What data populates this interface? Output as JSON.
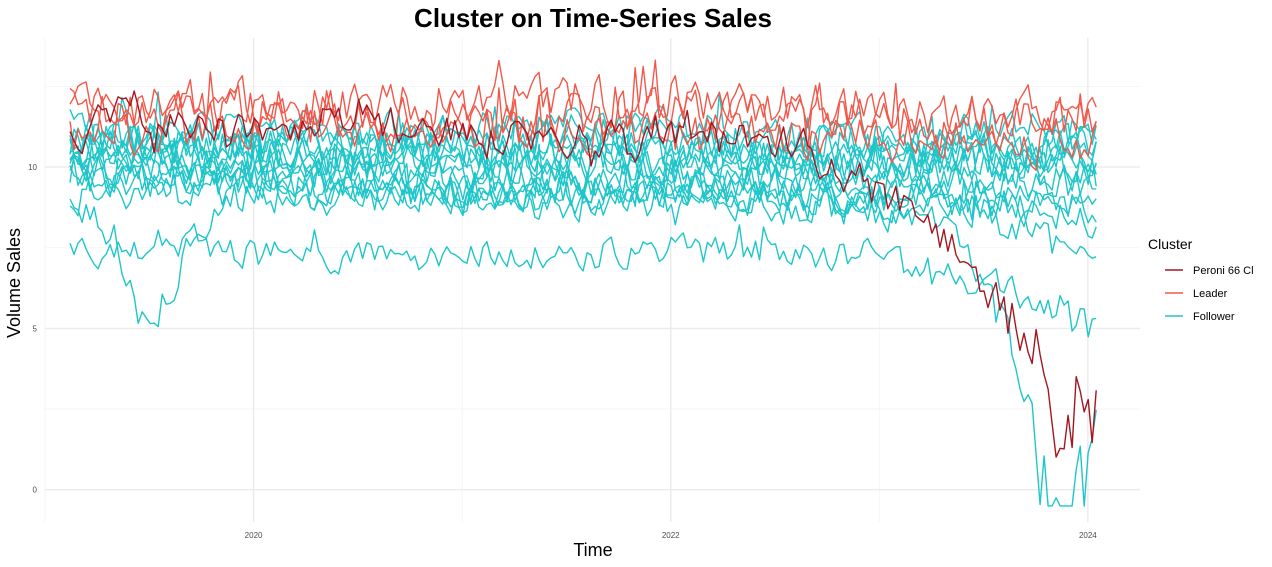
{
  "chart_data": {
    "type": "line",
    "title": "Cluster on Time-Series Sales",
    "xlabel": "Time",
    "ylabel": "Volume Sales",
    "xlim": [
      2019.0,
      2024.25
    ],
    "ylim": [
      -1.0,
      14.0
    ],
    "x_ticks": [
      {
        "value": 2020,
        "label": "2020"
      },
      {
        "value": 2022,
        "label": "2022"
      },
      {
        "value": 2024,
        "label": "2024"
      }
    ],
    "y_ticks": [
      {
        "value": 0,
        "label": "0"
      },
      {
        "value": 5,
        "label": "5"
      },
      {
        "value": 10,
        "label": "10"
      }
    ],
    "grid": true,
    "legend": {
      "title": "Cluster",
      "placement": "right",
      "entries": [
        {
          "label": "Peroni 66 Cl",
          "color": "#a31621"
        },
        {
          "label": "Leader",
          "color": "#f2584a"
        },
        {
          "label": "Follower",
          "color": "#1fc6c9"
        }
      ]
    },
    "series_defaults": {
      "x_start": 2019.12,
      "x_end": 2024.04,
      "points": 257
    },
    "series": [
      {
        "cluster": "Follower",
        "color": "#1fc6c9",
        "profile": [
          [
            2019.12,
            10.2
          ],
          [
            2020.0,
            10.0
          ],
          [
            2021.0,
            9.6
          ],
          [
            2022.0,
            9.7
          ],
          [
            2023.0,
            9.7
          ],
          [
            2024.04,
            9.9
          ]
        ],
        "noise": 0.55
      },
      {
        "cluster": "Follower",
        "color": "#1fc6c9",
        "profile": [
          [
            2019.12,
            9.8
          ],
          [
            2020.0,
            10.3
          ],
          [
            2021.0,
            10.2
          ],
          [
            2022.0,
            10.1
          ],
          [
            2023.0,
            10.0
          ],
          [
            2024.04,
            10.4
          ]
        ],
        "noise": 0.55
      },
      {
        "cluster": "Follower",
        "color": "#1fc6c9",
        "profile": [
          [
            2019.12,
            10.6
          ],
          [
            2020.0,
            10.8
          ],
          [
            2021.0,
            10.6
          ],
          [
            2022.0,
            10.7
          ],
          [
            2023.0,
            10.4
          ],
          [
            2024.04,
            10.8
          ]
        ],
        "noise": 0.55
      },
      {
        "cluster": "Follower",
        "color": "#1fc6c9",
        "profile": [
          [
            2019.12,
            9.4
          ],
          [
            2020.0,
            9.6
          ],
          [
            2021.0,
            9.3
          ],
          [
            2022.0,
            9.2
          ],
          [
            2023.0,
            9.0
          ],
          [
            2024.04,
            9.1
          ]
        ],
        "noise": 0.5
      },
      {
        "cluster": "Follower",
        "color": "#1fc6c9",
        "profile": [
          [
            2019.12,
            11.2
          ],
          [
            2020.0,
            11.0
          ],
          [
            2021.0,
            10.9
          ],
          [
            2022.0,
            11.0
          ],
          [
            2023.0,
            10.8
          ],
          [
            2024.04,
            10.6
          ]
        ],
        "noise": 0.6
      },
      {
        "cluster": "Follower",
        "color": "#1fc6c9",
        "profile": [
          [
            2019.12,
            10.0
          ],
          [
            2020.0,
            9.9
          ],
          [
            2021.0,
            9.8
          ],
          [
            2022.0,
            9.9
          ],
          [
            2023.0,
            9.6
          ],
          [
            2024.04,
            9.5
          ]
        ],
        "noise": 0.55
      },
      {
        "cluster": "Follower",
        "color": "#1fc6c9",
        "profile": [
          [
            2019.12,
            10.8
          ],
          [
            2020.0,
            10.4
          ],
          [
            2021.0,
            10.1
          ],
          [
            2022.0,
            10.3
          ],
          [
            2023.0,
            10.1
          ],
          [
            2024.04,
            10.2
          ]
        ],
        "noise": 0.55
      },
      {
        "cluster": "Follower",
        "color": "#1fc6c9",
        "profile": [
          [
            2019.12,
            9.1
          ],
          [
            2020.0,
            9.3
          ],
          [
            2021.0,
            9.2
          ],
          [
            2022.0,
            9.4
          ],
          [
            2023.0,
            9.2
          ],
          [
            2024.04,
            8.7
          ]
        ],
        "noise": 0.5
      },
      {
        "cluster": "Follower",
        "color": "#1fc6c9",
        "profile": [
          [
            2019.12,
            11.0
          ],
          [
            2020.0,
            10.6
          ],
          [
            2021.0,
            10.5
          ],
          [
            2022.0,
            10.4
          ],
          [
            2023.0,
            10.3
          ],
          [
            2024.04,
            10.0
          ]
        ],
        "noise": 0.55
      },
      {
        "cluster": "Follower",
        "color": "#1fc6c9",
        "profile": [
          [
            2019.12,
            10.4
          ],
          [
            2020.0,
            10.1
          ],
          [
            2021.0,
            10.4
          ],
          [
            2022.0,
            10.5
          ],
          [
            2023.0,
            10.2
          ],
          [
            2024.04,
            10.6
          ]
        ],
        "noise": 0.6
      },
      {
        "cluster": "Follower",
        "color": "#1fc6c9",
        "profile": [
          [
            2019.12,
            9.6
          ],
          [
            2020.0,
            9.5
          ],
          [
            2021.0,
            9.0
          ],
          [
            2022.0,
            9.1
          ],
          [
            2023.0,
            8.9
          ],
          [
            2024.04,
            8.4
          ]
        ],
        "noise": 0.5
      },
      {
        "cluster": "Follower",
        "color": "#1fc6c9",
        "profile": [
          [
            2019.12,
            10.9
          ],
          [
            2020.0,
            11.2
          ],
          [
            2021.0,
            11.1
          ],
          [
            2022.0,
            11.3
          ],
          [
            2023.0,
            11.0
          ],
          [
            2024.04,
            11.1
          ]
        ],
        "noise": 0.55
      },
      {
        "cluster": "Follower",
        "color": "#1fc6c9",
        "profile": [
          [
            2019.12,
            7.6
          ],
          [
            2019.3,
            7.1
          ],
          [
            2019.55,
            7.9
          ],
          [
            2020.0,
            7.3
          ],
          [
            2021.0,
            7.2
          ],
          [
            2022.0,
            7.4
          ],
          [
            2023.0,
            7.3
          ],
          [
            2023.6,
            6.3
          ],
          [
            2023.85,
            5.6
          ],
          [
            2024.04,
            4.9
          ]
        ],
        "noise": 0.45
      },
      {
        "cluster": "Follower",
        "color": "#1fc6c9",
        "profile": [
          [
            2019.12,
            8.9
          ],
          [
            2019.3,
            7.9
          ],
          [
            2019.45,
            5.6
          ],
          [
            2019.55,
            5.4
          ],
          [
            2019.75,
            8.4
          ],
          [
            2020.0,
            9.1
          ],
          [
            2021.0,
            9.0
          ],
          [
            2022.0,
            8.9
          ],
          [
            2023.0,
            8.7
          ],
          [
            2023.3,
            8.2
          ],
          [
            2023.5,
            6.5
          ],
          [
            2023.7,
            3.5
          ],
          [
            2023.78,
            -0.4
          ],
          [
            2023.95,
            -0.3
          ],
          [
            2024.04,
            1.3
          ]
        ],
        "noise": 0.5
      },
      {
        "cluster": "Follower",
        "color": "#1fc6c9",
        "profile": [
          [
            2019.12,
            10.1
          ],
          [
            2020.0,
            9.7
          ],
          [
            2021.0,
            9.4
          ],
          [
            2022.0,
            9.5
          ],
          [
            2023.0,
            9.3
          ],
          [
            2023.5,
            8.6
          ],
          [
            2024.04,
            7.0
          ]
        ],
        "noise": 0.5
      },
      {
        "cluster": "Leader",
        "color": "#f2584a",
        "profile": [
          [
            2019.12,
            11.6
          ],
          [
            2020.0,
            11.7
          ],
          [
            2021.0,
            11.5
          ],
          [
            2022.0,
            11.6
          ],
          [
            2023.0,
            11.5
          ],
          [
            2024.04,
            11.3
          ]
        ],
        "noise": 0.7
      },
      {
        "cluster": "Leader",
        "color": "#f2584a",
        "profile": [
          [
            2019.12,
            11.0
          ],
          [
            2020.0,
            11.3
          ],
          [
            2021.0,
            11.2
          ],
          [
            2022.0,
            11.0
          ],
          [
            2023.0,
            10.9
          ],
          [
            2024.04,
            10.8
          ]
        ],
        "noise": 0.65
      },
      {
        "cluster": "Leader",
        "color": "#f2584a",
        "profile": [
          [
            2019.12,
            12.0
          ],
          [
            2020.0,
            11.9
          ],
          [
            2021.0,
            12.0
          ],
          [
            2022.0,
            12.1
          ],
          [
            2023.0,
            11.8
          ],
          [
            2024.04,
            11.6
          ]
        ],
        "noise": 0.7
      },
      {
        "cluster": "Peroni 66 Cl",
        "color": "#a31621",
        "profile": [
          [
            2019.12,
            10.6
          ],
          [
            2019.3,
            11.6
          ],
          [
            2020.0,
            11.0
          ],
          [
            2020.5,
            11.6
          ],
          [
            2021.0,
            10.9
          ],
          [
            2022.0,
            10.8
          ],
          [
            2022.5,
            11.0
          ],
          [
            2023.0,
            9.2
          ],
          [
            2023.3,
            7.9
          ],
          [
            2023.5,
            6.4
          ],
          [
            2023.65,
            5.0
          ],
          [
            2023.75,
            4.2
          ],
          [
            2023.85,
            1.3
          ],
          [
            2023.95,
            2.8
          ],
          [
            2024.04,
            2.3
          ]
        ],
        "noise": 0.55
      }
    ]
  }
}
